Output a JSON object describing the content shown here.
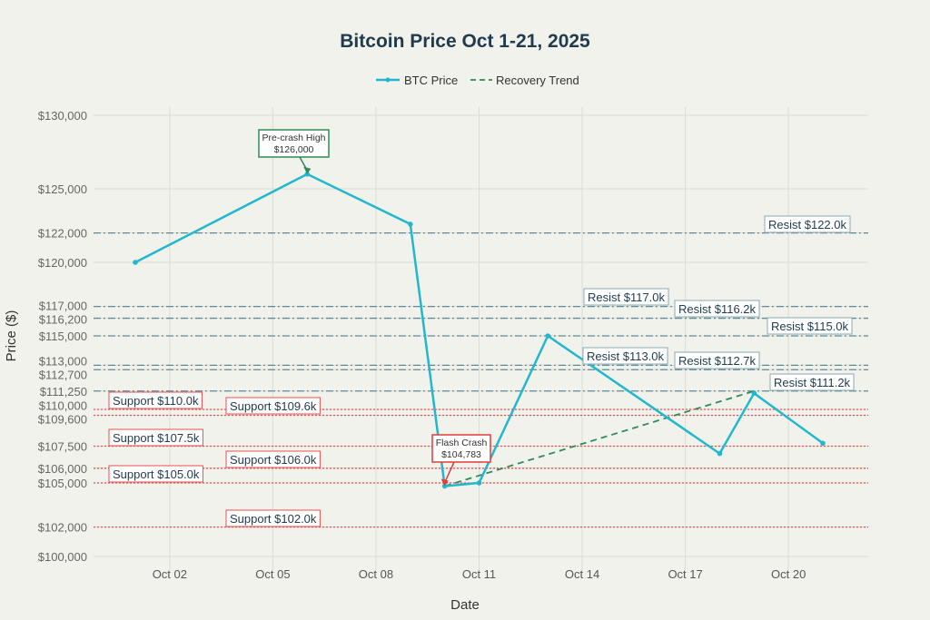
{
  "chart_data": {
    "type": "line",
    "title": "Bitcoin Price Oct 1-21, 2025",
    "xlabel": "Date",
    "ylabel": "Price ($)",
    "legend": {
      "placement": "top-center",
      "entries": [
        "BTC Price",
        "Recovery Trend"
      ]
    },
    "x_ticks": [
      {
        "day": 2,
        "label": "Oct 02"
      },
      {
        "day": 5,
        "label": "Oct 05"
      },
      {
        "day": 8,
        "label": "Oct 08"
      },
      {
        "day": 11,
        "label": "Oct 11"
      },
      {
        "day": 14,
        "label": "Oct 14"
      },
      {
        "day": 17,
        "label": "Oct 17"
      },
      {
        "day": 20,
        "label": "Oct 20"
      }
    ],
    "y_ticks": [
      {
        "v": 100000,
        "label": "$100,000"
      },
      {
        "v": 102000,
        "label": "$102,000"
      },
      {
        "v": 105000,
        "label": "$105,000"
      },
      {
        "v": 106000,
        "label": "$106,000"
      },
      {
        "v": 107500,
        "label": "$107,500"
      },
      {
        "v": 109600,
        "label": "$109,600"
      },
      {
        "v": 110000,
        "label": "$110,000"
      },
      {
        "v": 111250,
        "label": "$111,250"
      },
      {
        "v": 112700,
        "label": "$112,700"
      },
      {
        "v": 113000,
        "label": "$113,000"
      },
      {
        "v": 115000,
        "label": "$115,000"
      },
      {
        "v": 116200,
        "label": "$116,200"
      },
      {
        "v": 117000,
        "label": "$117,000"
      },
      {
        "v": 120000,
        "label": "$120,000"
      },
      {
        "v": 122000,
        "label": "$122,000"
      },
      {
        "v": 125000,
        "label": "$125,000"
      },
      {
        "v": 130000,
        "label": "$130,000"
      }
    ],
    "ylim": [
      100000,
      130000
    ],
    "xlim_days": [
      0,
      22
    ],
    "grid": true,
    "series": [
      {
        "name": "BTC Price",
        "color": "#21b8cd",
        "x": [
          1,
          6,
          9,
          10,
          11,
          13,
          18,
          19,
          21
        ],
        "values": [
          120000,
          126000,
          122600,
          104783,
          105000,
          115000,
          107000,
          111100,
          107700
        ]
      },
      {
        "name": "Recovery Trend",
        "color": "#2e8b57",
        "x": [
          10,
          19
        ],
        "values": [
          104783,
          111250
        ]
      }
    ],
    "resistance": {
      "color": "#5f8a96",
      "levels": [
        {
          "v": 122000,
          "label": "Resist $122.0k"
        },
        {
          "v": 117000,
          "label": "Resist $117.0k"
        },
        {
          "v": 116200,
          "label": "Resist $116.2k"
        },
        {
          "v": 115000,
          "label": "Resist $115.0k"
        },
        {
          "v": 113000,
          "label": "Resist $113.0k"
        },
        {
          "v": 112700,
          "label": "Resist $112.7k"
        },
        {
          "v": 111250,
          "label": "Resist $111.2k"
        }
      ]
    },
    "support": {
      "color": "#e85050",
      "levels": [
        {
          "v": 110000,
          "label": "Support $110.0k"
        },
        {
          "v": 109600,
          "label": "Support $109.6k"
        },
        {
          "v": 107500,
          "label": "Support $107.5k"
        },
        {
          "v": 106000,
          "label": "Support $106.0k"
        },
        {
          "v": 105000,
          "label": "Support $105.0k"
        },
        {
          "v": 102000,
          "label": "Support $102.0k"
        }
      ]
    },
    "annotations": [
      {
        "x": 6,
        "y": 126000,
        "lines": [
          "Pre-crash High",
          "$126,000"
        ],
        "color": "#2e8b57"
      },
      {
        "x": 10,
        "y": 104783,
        "lines": [
          "Flash Crash",
          "$104,783"
        ],
        "color": "#e03c3c"
      }
    ]
  }
}
